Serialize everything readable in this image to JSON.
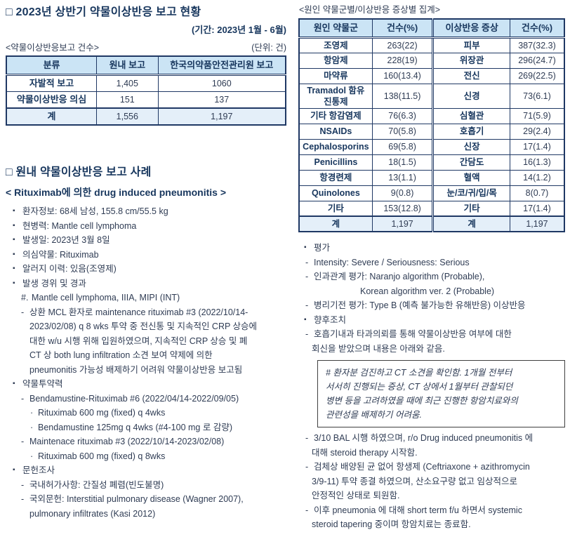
{
  "colors": {
    "heading": "#17365D",
    "body_text": "#2F3C54",
    "table_border": "#1F3864",
    "table_header_bg": "#CBE4F5",
    "table_total_bg": "#E4EFF9",
    "consult_box_border": "#3F3F3F"
  },
  "report_status": {
    "title": "□ 2023년 상반기 약물이상반응 보고 현황",
    "period": "(기간: 2023년 1월 - 6월)",
    "table_caption": "<약물이상반응보고 건수>",
    "unit_label": "(단위: 건)",
    "table": {
      "headers": [
        "분류",
        "원내 보고",
        "한국의약품안전관리원 보고"
      ],
      "rows": [
        [
          "자발적 보고",
          "1,405",
          "1060"
        ],
        [
          "약물이상반응 의심",
          "151",
          "137"
        ]
      ],
      "total": [
        "계",
        "1,556",
        "1,197"
      ]
    }
  },
  "cause_summary": {
    "table_caption": "<원인 약물군별/이상반응 증상별 집계>",
    "table": {
      "headers": [
        "원인 약물군",
        "건수(%)",
        "이상반응 증상",
        "건수(%)"
      ],
      "rows": [
        [
          "조영제",
          "263(22)",
          "피부",
          "387(32.3)"
        ],
        [
          "항암제",
          "228(19)",
          "위장관",
          "296(24.7)"
        ],
        [
          "마약류",
          "160(13.4)",
          "전신",
          "269(22.5)"
        ],
        [
          "Tramadol 함유\n진통제",
          "138(11.5)",
          "신경",
          "73(6.1)"
        ],
        [
          "기타 항감염제",
          "76(6.3)",
          "심혈관",
          "71(5.9)"
        ],
        [
          "NSAIDs",
          "70(5.8)",
          "호흡기",
          "29(2.4)"
        ],
        [
          "Cephalosporins",
          "69(5.8)",
          "신장",
          "17(1.4)"
        ],
        [
          "Penicillins",
          "18(1.5)",
          "간담도",
          "16(1.3)"
        ],
        [
          "항경련제",
          "13(1.1)",
          "혈액",
          "14(1.2)"
        ],
        [
          "Quinolones",
          "9(0.8)",
          "눈/코/귀/입/목",
          "8(0.7)"
        ],
        [
          "기타",
          "153(12.8)",
          "기타",
          "17(1.4)"
        ]
      ],
      "total": [
        "계",
        "1,197",
        "계",
        "1,197"
      ]
    }
  },
  "case_report": {
    "title": "□ 원내 약물이상반응 보고 사례",
    "subtitle": "< Rituximab에 의한 drug induced pneumonitis >",
    "lines": [
      {
        "m": "▪",
        "i": "1",
        "t": "환자정보: 68세 남성, 155.8 cm/55.5 kg"
      },
      {
        "m": "▪",
        "i": "1",
        "t": "현병력: Mantle cell lymphoma"
      },
      {
        "m": "▪",
        "i": "1",
        "t": "발생일: 2023년 3월 8일"
      },
      {
        "m": "▪",
        "i": "1",
        "t": "의심약물: Rituximab"
      },
      {
        "m": "▪",
        "i": "1",
        "t": "알러지 이력: 있음(조영제)"
      },
      {
        "m": "▪",
        "i": "1",
        "t": "발생 경위 및 경과"
      },
      {
        "m": "#.",
        "i": "2",
        "t": "Mantle cell lymphoma, IIIA, MIPI (INT)"
      },
      {
        "m": "-",
        "i": "2",
        "t": "상환 MCL 환자로 maintenance rituximab #3 (2022/10/14-"
      },
      {
        "m": "",
        "i": "3",
        "t": "2023/02/08) q 8 wks 투약 중 전신통 및 지속적인 CRP 상승에"
      },
      {
        "m": "",
        "i": "3",
        "t": "대한 w/u 시행 위해 입원하였으며, 지속적인 CRP 상승 및 폐"
      },
      {
        "m": "",
        "i": "3",
        "t": "CT 상 both lung infiltration 소견 보여 약제에 의한"
      },
      {
        "m": "",
        "i": "3",
        "t": "pneumonitis 가능성 배제하기 어려워 약물이상반응 보고됨"
      },
      {
        "m": "▪",
        "i": "1",
        "t": "약물투약력"
      },
      {
        "m": "-",
        "i": "2",
        "t": "Bendamustine-Rituximab #6 (2022/04/14-2022/09/05)"
      },
      {
        "m": "·",
        "i": "3d",
        "t": "Rituximab 600 mg (fixed) q 4wks"
      },
      {
        "m": "·",
        "i": "3d",
        "t": "Bendamustine 125mg q 4wks (#4-100 mg 로 감량)"
      },
      {
        "m": "-",
        "i": "2",
        "t": "Maintenace rituximab #3 (2022/10/14-2023/02/08)"
      },
      {
        "m": "·",
        "i": "3d",
        "t": "Rituximab 600 mg (fixed) q 8wks"
      },
      {
        "m": "▪",
        "i": "1",
        "t": "문헌조사"
      },
      {
        "m": "-",
        "i": "2",
        "t": "국내허가사항: 간질성 폐렴(빈도불명)"
      },
      {
        "m": "-",
        "i": "2",
        "t": "국외문헌: Interstitial pulmonary disease (Wagner 2007),"
      },
      {
        "m": "",
        "i": "3",
        "t": "pulmonary infiltrates (Kasi 2012)"
      }
    ]
  },
  "evaluation": {
    "lines": [
      {
        "m": "▪",
        "i": "1",
        "t": "평가"
      },
      {
        "m": "-",
        "i": "2",
        "t": "Intensity: Severe / Seriousness: Serious"
      },
      {
        "m": "-",
        "i": "2",
        "t": "인과관계 평가: Naranjo algorithm (Probable),"
      },
      {
        "m": "",
        "i": "4",
        "t": "Korean algorithm ver. 2 (Probable)"
      },
      {
        "m": "-",
        "i": "2",
        "t": "병리기전 평가: Type B (예측 불가능한 유해반응) 이상반응"
      },
      {
        "m": "▪",
        "i": "1",
        "t": "향후조치"
      },
      {
        "m": "-",
        "i": "2",
        "t": "호흡기내과 타과의뢰를 통해 약물이상반응 여부에 대한"
      },
      {
        "m": "",
        "i": "3",
        "t": "회신을 받았으며 내용은 아래와 같음."
      }
    ],
    "consult_note": [
      "# 환자분 검진하고 CT 소견을 확인함. 1개월 전부터",
      "서서히 진행되는 증상, CT 상에서 1월부터 관찰되던",
      "병변 등을 고려하였을 때에 최근 진행한 항암치료와의",
      "관련성을 배제하기 어려움."
    ],
    "followup_lines": [
      {
        "m": "-",
        "i": "2",
        "t": "3/10 BAL 시행 하였으며, r/o Drug induced pneumonitis 에"
      },
      {
        "m": "",
        "i": "3",
        "t": "대해 steroid therapy 시작함."
      },
      {
        "m": "-",
        "i": "2",
        "t": "검체상 배양된 균 없어 항생제 (Ceftriaxone + azithromycin"
      },
      {
        "m": "",
        "i": "3",
        "t": "3/9-11) 투약 종결 하였으며, 산소요구량 없고 임상적으로"
      },
      {
        "m": "",
        "i": "3",
        "t": "안정적인 상태로 퇴원함."
      },
      {
        "m": "-",
        "i": "2",
        "t": "이후 pneumonia 에 대해 short term f/u 하면서 systemic"
      },
      {
        "m": "",
        "i": "3",
        "t": "steroid tapering 중이며 항암치료는 종료함."
      }
    ]
  }
}
